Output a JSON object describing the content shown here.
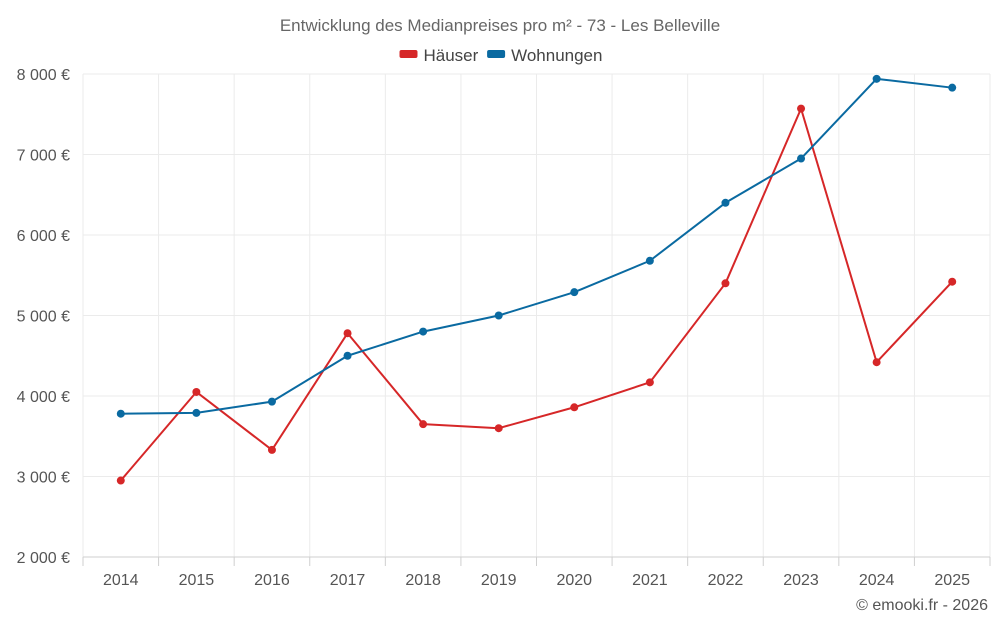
{
  "chart_data": {
    "type": "line",
    "title": "Entwicklung des Medianpreises pro m² - 73 - Les Belleville",
    "categories": [
      "2014",
      "2015",
      "2016",
      "2017",
      "2018",
      "2019",
      "2020",
      "2021",
      "2022",
      "2023",
      "2024",
      "2025"
    ],
    "series": [
      {
        "name": "Häuser",
        "color": "#d62728",
        "values": [
          2950,
          4050,
          3330,
          4780,
          3650,
          3600,
          3860,
          4170,
          5400,
          7570,
          4420,
          5420
        ]
      },
      {
        "name": "Wohnungen",
        "color": "#0a6aa1",
        "values": [
          3780,
          3790,
          3930,
          4500,
          4800,
          5000,
          5290,
          5680,
          6400,
          6950,
          7940,
          7830
        ]
      }
    ],
    "ylim": [
      2000,
      8000
    ],
    "y_ticks": [
      2000,
      3000,
      4000,
      5000,
      6000,
      7000,
      8000
    ],
    "y_tick_labels": [
      "2 000 €",
      "3 000 €",
      "4 000 €",
      "5 000 €",
      "6 000 €",
      "7 000 €",
      "8 000 €"
    ],
    "xlabel": "",
    "ylabel": "",
    "grid": true,
    "legend_position": "top-center"
  },
  "credit": "© emooki.fr - 2026"
}
